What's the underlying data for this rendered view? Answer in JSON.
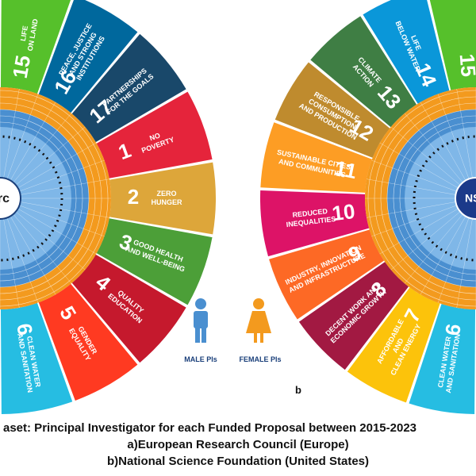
{
  "left_wheel": {
    "logo_text": "erc",
    "goals": [
      {
        "num": "15",
        "lines": [
          "LIFE",
          "ON LAND"
        ],
        "color": "#56C02B"
      },
      {
        "num": "16",
        "lines": [
          "PEACE, JUSTICE",
          "AND STRONG",
          "INSTITUTIONS"
        ],
        "color": "#00689D"
      },
      {
        "num": "17",
        "lines": [
          "PARTNERSHIPS",
          "FOR THE GOALS"
        ],
        "color": "#19486A"
      },
      {
        "num": "1",
        "lines": [
          "NO",
          "POVERTY"
        ],
        "color": "#E5243B"
      },
      {
        "num": "2",
        "lines": [
          "ZERO",
          "HUNGER"
        ],
        "color": "#DDA63A"
      },
      {
        "num": "3",
        "lines": [
          "GOOD HEALTH",
          "AND WELL-BEING"
        ],
        "color": "#4C9F38"
      },
      {
        "num": "4",
        "lines": [
          "QUALITY",
          "EDUCATION"
        ],
        "color": "#C5192D"
      },
      {
        "num": "5",
        "lines": [
          "GENDER",
          "EQUALITY"
        ],
        "color": "#FF3A21"
      },
      {
        "num": "6",
        "lines": [
          "CLEAN WATER",
          "AND SANITATION"
        ],
        "color": "#26BDE2"
      }
    ]
  },
  "right_wheel": {
    "logo_text": "NSF",
    "goals": [
      {
        "num": "6",
        "lines": [
          "CLEAN WATER",
          "AND SANITATION"
        ],
        "color": "#26BDE2"
      },
      {
        "num": "7",
        "lines": [
          "AFFORDABLE",
          "AND",
          "CLEAN ENERGY"
        ],
        "color": "#FCC30B"
      },
      {
        "num": "8",
        "lines": [
          "DECENT WORK AND",
          "ECONOMIC GROWTH"
        ],
        "color": "#A21942"
      },
      {
        "num": "9",
        "lines": [
          "INDUSTRY, INNOVATION",
          "AND INFRASTRUCTURE"
        ],
        "color": "#FD6925"
      },
      {
        "num": "10",
        "lines": [
          "REDUCED",
          "INEQUALITIES"
        ],
        "color": "#DD1367"
      },
      {
        "num": "11",
        "lines": [
          "SUSTAINABLE CITIES",
          "AND COMMUNITIES"
        ],
        "color": "#FD9D24"
      },
      {
        "num": "12",
        "lines": [
          "RESPONSIBLE",
          "CONSUMPTION",
          "AND PRODUCTION"
        ],
        "color": "#BF8B2E"
      },
      {
        "num": "13",
        "lines": [
          "CLIMATE",
          "ACTION"
        ],
        "color": "#3F7E44"
      },
      {
        "num": "14",
        "lines": [
          "LIFE",
          "BELOW WATER"
        ],
        "color": "#0A97D9"
      },
      {
        "num": "15",
        "lines": [
          ""
        ],
        "color": "#56C02B"
      }
    ]
  },
  "legend": {
    "male_label": "MALE PIs",
    "female_label": "FEMALE PIs",
    "male_color": "#4A8FD0",
    "female_color": "#F39A1E"
  },
  "panel_label_b": "b",
  "colors": {
    "ring_orange": "#F39A1E",
    "ring_blue": "#4A8FD0",
    "hub_blue": "#7FB7E8"
  },
  "caption": {
    "line1": "aset:  Principal Investigator for each Funded Proposal between 2015-2023",
    "line2": "a)European Research Council (Europe)",
    "line3": "b)National Science Foundation (United States)"
  }
}
